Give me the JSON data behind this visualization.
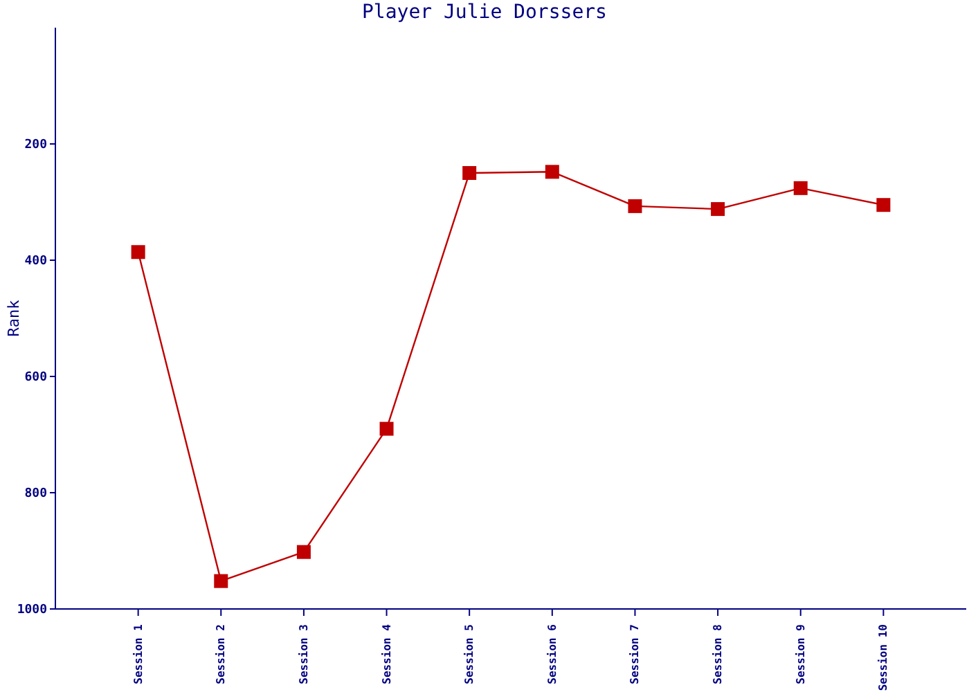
{
  "chart_data": {
    "type": "line",
    "title": "Player Julie Dorssers",
    "ylabel": "Rank",
    "categories": [
      "Session 1",
      "Session 2",
      "Session 3",
      "Session 4",
      "Session 5",
      "Session 6",
      "Session 7",
      "Session 8",
      "Session 9",
      "Session 10"
    ],
    "series": [
      {
        "color": "#c00000",
        "values": [
          386,
          952,
          902,
          690,
          250,
          248,
          307,
          312,
          276,
          305
        ]
      }
    ],
    "ylim": [
      1000,
      0
    ],
    "yticks": [
      200,
      400,
      600,
      800,
      1000
    ],
    "marker": "square",
    "line_style": "solid",
    "grid": false,
    "legend": false
  }
}
